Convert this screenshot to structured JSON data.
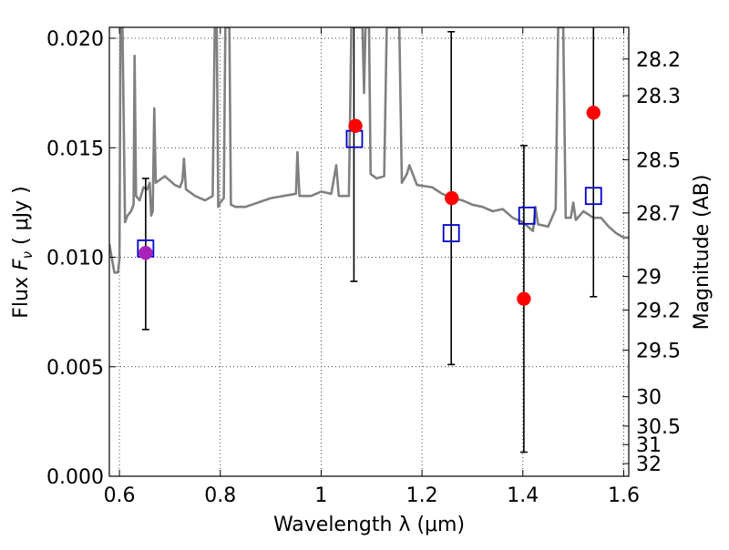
{
  "chart_data": {
    "type": "scatter",
    "xlabel": "Wavelength  λ (μm)",
    "ylabel_text": "Flux  ",
    "ylabel_symbol": "F",
    "ylabel_sub": "ν",
    "ylabel_unit": "  ( μJy )",
    "y2label": "Magnitude (AB)",
    "xlim": [
      0.58,
      1.61
    ],
    "ylim": [
      0.0,
      0.0205
    ],
    "grid": true,
    "grid_style": "dotted",
    "x_ticks": [
      0.6,
      0.8,
      1.0,
      1.2,
      1.4,
      1.6
    ],
    "x_tick_labels": [
      "0.6",
      "0.8",
      "1",
      "1.2",
      "1.4",
      "1.6"
    ],
    "y_ticks": [
      0.0,
      0.005,
      0.01,
      0.015,
      0.02
    ],
    "y_tick_labels": [
      "0.000",
      "0.005",
      "0.010",
      "0.015",
      "0.020"
    ],
    "y2_ticks": [
      28.2,
      28.3,
      28.5,
      28.7,
      29,
      29.2,
      29.5,
      30,
      30.5,
      31,
      32
    ],
    "y2_tick_labels": [
      "28.2",
      "28.3",
      "28.5",
      "28.7",
      "29",
      "29.2",
      "29.5",
      "30",
      "30.5",
      "31",
      "32"
    ],
    "spectrum": {
      "color": "#808080",
      "points": [
        [
          0.58,
          0.0106
        ],
        [
          0.59,
          0.0093
        ],
        [
          0.597,
          0.0093
        ],
        [
          0.6,
          0.0099
        ],
        [
          0.602,
          0.0205
        ],
        [
          0.606,
          0.0205
        ],
        [
          0.611,
          0.0116
        ],
        [
          0.616,
          0.0119
        ],
        [
          0.623,
          0.0121
        ],
        [
          0.628,
          0.0124
        ],
        [
          0.63,
          0.0192
        ],
        [
          0.633,
          0.0128
        ],
        [
          0.64,
          0.0126
        ],
        [
          0.648,
          0.0132
        ],
        [
          0.655,
          0.0131
        ],
        [
          0.66,
          0.0134
        ],
        [
          0.663,
          0.0119
        ],
        [
          0.666,
          0.0121
        ],
        [
          0.669,
          0.0168
        ],
        [
          0.672,
          0.0134
        ],
        [
          0.69,
          0.0137
        ],
        [
          0.71,
          0.0133
        ],
        [
          0.72,
          0.0132
        ],
        [
          0.725,
          0.0135
        ],
        [
          0.728,
          0.0145
        ],
        [
          0.732,
          0.0131
        ],
        [
          0.75,
          0.0128
        ],
        [
          0.77,
          0.0126
        ],
        [
          0.785,
          0.0128
        ],
        [
          0.789,
          0.0205
        ],
        [
          0.793,
          0.0205
        ],
        [
          0.796,
          0.0123
        ],
        [
          0.8,
          0.0125
        ],
        [
          0.807,
          0.0127
        ],
        [
          0.81,
          0.0205
        ],
        [
          0.818,
          0.0205
        ],
        [
          0.821,
          0.0124
        ],
        [
          0.83,
          0.0123
        ],
        [
          0.85,
          0.0123
        ],
        [
          0.9,
          0.0127
        ],
        [
          0.95,
          0.0129
        ],
        [
          0.953,
          0.0148
        ],
        [
          0.957,
          0.0128
        ],
        [
          0.98,
          0.0128
        ],
        [
          1.0,
          0.013
        ],
        [
          1.02,
          0.0129
        ],
        [
          1.03,
          0.0142
        ],
        [
          1.035,
          0.0128
        ],
        [
          1.055,
          0.0128
        ],
        [
          1.06,
          0.0205
        ],
        [
          1.07,
          0.0205
        ],
        [
          1.078,
          0.0205
        ],
        [
          1.082,
          0.0205
        ],
        [
          1.085,
          0.0175
        ],
        [
          1.088,
          0.0205
        ],
        [
          1.095,
          0.0205
        ],
        [
          1.098,
          0.0138
        ],
        [
          1.11,
          0.0136
        ],
        [
          1.125,
          0.0137
        ],
        [
          1.13,
          0.0205
        ],
        [
          1.155,
          0.0205
        ],
        [
          1.16,
          0.0134
        ],
        [
          1.17,
          0.0138
        ],
        [
          1.175,
          0.0142
        ],
        [
          1.19,
          0.0133
        ],
        [
          1.22,
          0.0132
        ],
        [
          1.24,
          0.0129
        ],
        [
          1.26,
          0.0127
        ],
        [
          1.28,
          0.0126
        ],
        [
          1.3,
          0.0124
        ],
        [
          1.32,
          0.0123
        ],
        [
          1.34,
          0.0121
        ],
        [
          1.36,
          0.0122
        ],
        [
          1.38,
          0.0118
        ],
        [
          1.4,
          0.0116
        ],
        [
          1.42,
          0.0112
        ],
        [
          1.425,
          0.0123
        ],
        [
          1.43,
          0.0115
        ],
        [
          1.45,
          0.0114
        ],
        [
          1.465,
          0.0122
        ],
        [
          1.47,
          0.0205
        ],
        [
          1.48,
          0.0205
        ],
        [
          1.485,
          0.0118
        ],
        [
          1.495,
          0.0118
        ],
        [
          1.5,
          0.0125
        ],
        [
          1.505,
          0.0117
        ],
        [
          1.52,
          0.0121
        ],
        [
          1.54,
          0.0118
        ],
        [
          1.555,
          0.0118
        ],
        [
          1.57,
          0.0114
        ],
        [
          1.585,
          0.0111
        ],
        [
          1.6,
          0.0109
        ],
        [
          1.61,
          0.0109
        ]
      ]
    },
    "error_bars": [
      {
        "x": 0.652,
        "low": 0.0067,
        "high": 0.0136
      },
      {
        "x": 1.065,
        "low": 0.0089,
        "high": 0.0205
      },
      {
        "x": 1.258,
        "low": 0.0051,
        "high": 0.0203
      },
      {
        "x": 1.402,
        "low": 0.0011,
        "high": 0.0151
      },
      {
        "x": 1.54,
        "low": 0.0082,
        "high": 0.0205
      }
    ],
    "squares": {
      "color": "#0000cc",
      "points": [
        {
          "x": 0.652,
          "y": 0.0104
        },
        {
          "x": 1.066,
          "y": 0.0154
        },
        {
          "x": 1.258,
          "y": 0.0111
        },
        {
          "x": 1.408,
          "y": 0.0119
        },
        {
          "x": 1.54,
          "y": 0.0128
        }
      ]
    },
    "circles": {
      "points": [
        {
          "x": 0.652,
          "y": 0.0102,
          "color": "#aa22bb"
        },
        {
          "x": 1.068,
          "y": 0.016,
          "color": "#ff0000"
        },
        {
          "x": 1.259,
          "y": 0.0127,
          "color": "#ff0000"
        },
        {
          "x": 1.402,
          "y": 0.0081,
          "color": "#ff0000"
        },
        {
          "x": 1.54,
          "y": 0.0166,
          "color": "#ff0000"
        }
      ]
    }
  }
}
